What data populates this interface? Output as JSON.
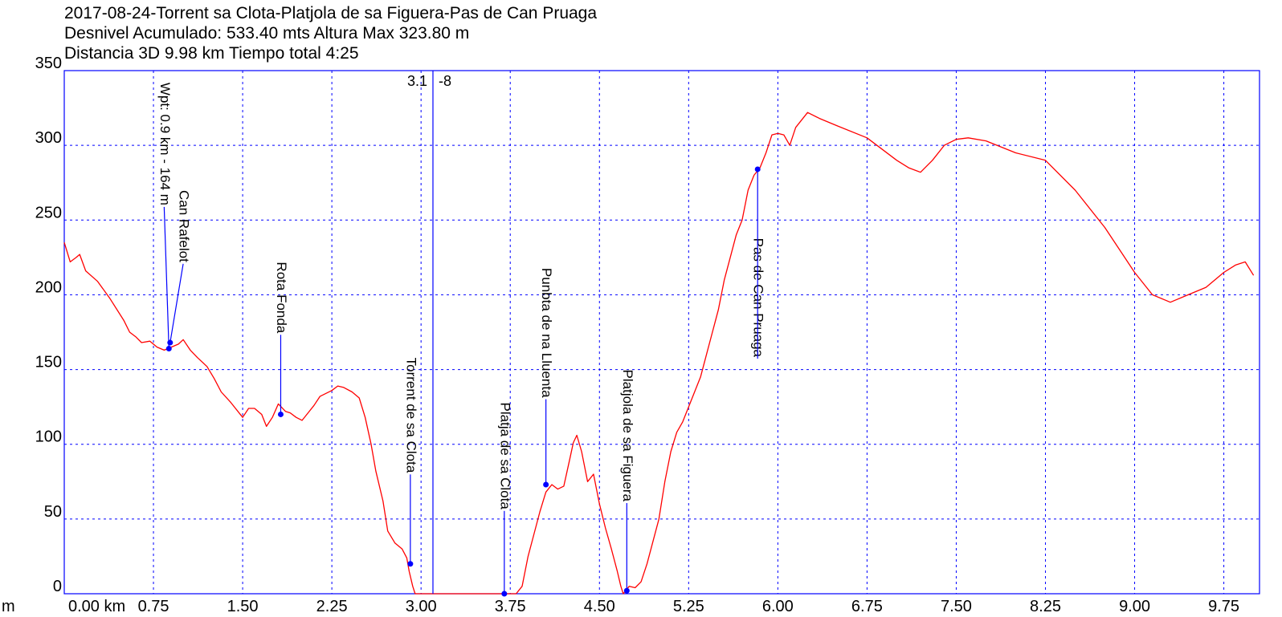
{
  "header": {
    "line1": "2017-08-24-Torrent sa Clota-Platjola de sa Figuera-Pas de Can Pruaga",
    "line2": "Desnivel Acumulado: 533.40 mts  Altura Max 323.80 m",
    "line3": "Distancia 3D 9.98 km  Tiempo total 4:25"
  },
  "cursor": {
    "x": 3.1,
    "label_left": "3.1",
    "label_right": "-8"
  },
  "colors": {
    "profile": "#ff0000",
    "frame": "#0000ff",
    "grid": "#0000ff",
    "marker": "#0000ff",
    "leader": "#0000ff"
  },
  "chart_data": {
    "type": "line",
    "title": "2017-08-24-Torrent sa Clota-Platjola de sa Figuera-Pas de Can Pruaga",
    "xlabel": "",
    "x_unit_prefix": "m",
    "ylabel": "",
    "xlim": [
      0,
      10.05
    ],
    "ylim": [
      0,
      350
    ],
    "x_ticks": [
      {
        "value": 0,
        "label": "0.00 km"
      },
      {
        "value": 0.75,
        "label": "0.75"
      },
      {
        "value": 1.5,
        "label": "1.50"
      },
      {
        "value": 2.25,
        "label": "2.25"
      },
      {
        "value": 3.0,
        "label": "3.00"
      },
      {
        "value": 3.75,
        "label": "3.75"
      },
      {
        "value": 4.5,
        "label": "4.50"
      },
      {
        "value": 5.25,
        "label": "5.25"
      },
      {
        "value": 6.0,
        "label": "6.00"
      },
      {
        "value": 6.75,
        "label": "6.75"
      },
      {
        "value": 7.5,
        "label": "7.50"
      },
      {
        "value": 8.25,
        "label": "8.25"
      },
      {
        "value": 9.0,
        "label": "9.00"
      },
      {
        "value": 9.75,
        "label": "9.75"
      }
    ],
    "y_ticks": [
      {
        "value": 0,
        "label": "0"
      },
      {
        "value": 50,
        "label": "50"
      },
      {
        "value": 100,
        "label": "100"
      },
      {
        "value": 150,
        "label": "150"
      },
      {
        "value": 200,
        "label": "200"
      },
      {
        "value": 250,
        "label": "250"
      },
      {
        "value": 300,
        "label": "300"
      },
      {
        "value": 350,
        "label": "350"
      }
    ],
    "grid": true,
    "series": [
      {
        "points": [
          [
            0.0,
            235
          ],
          [
            0.05,
            222
          ],
          [
            0.1,
            225
          ],
          [
            0.13,
            227
          ],
          [
            0.18,
            216
          ],
          [
            0.28,
            209
          ],
          [
            0.38,
            198
          ],
          [
            0.5,
            183
          ],
          [
            0.55,
            175
          ],
          [
            0.6,
            172
          ],
          [
            0.65,
            168
          ],
          [
            0.72,
            169
          ],
          [
            0.78,
            165
          ],
          [
            0.84,
            163
          ],
          [
            0.9,
            165
          ],
          [
            0.96,
            167
          ],
          [
            1.0,
            170
          ],
          [
            1.06,
            163
          ],
          [
            1.12,
            158
          ],
          [
            1.2,
            152
          ],
          [
            1.26,
            144
          ],
          [
            1.32,
            135
          ],
          [
            1.4,
            128
          ],
          [
            1.5,
            118
          ],
          [
            1.55,
            124
          ],
          [
            1.6,
            124
          ],
          [
            1.66,
            120
          ],
          [
            1.7,
            112
          ],
          [
            1.75,
            118
          ],
          [
            1.8,
            127
          ],
          [
            1.86,
            122
          ],
          [
            1.9,
            121
          ],
          [
            1.95,
            118
          ],
          [
            2.0,
            116
          ],
          [
            2.05,
            121
          ],
          [
            2.1,
            126
          ],
          [
            2.15,
            132
          ],
          [
            2.25,
            136
          ],
          [
            2.3,
            139
          ],
          [
            2.35,
            138
          ],
          [
            2.42,
            135
          ],
          [
            2.48,
            131
          ],
          [
            2.53,
            118
          ],
          [
            2.58,
            100
          ],
          [
            2.62,
            82
          ],
          [
            2.68,
            62
          ],
          [
            2.72,
            42
          ],
          [
            2.78,
            34
          ],
          [
            2.84,
            30
          ],
          [
            2.88,
            24
          ],
          [
            2.9,
            15
          ],
          [
            2.93,
            5
          ],
          [
            2.95,
            0
          ],
          [
            3.8,
            0
          ],
          [
            3.85,
            5
          ],
          [
            3.9,
            25
          ],
          [
            3.95,
            40
          ],
          [
            4.0,
            55
          ],
          [
            4.05,
            68
          ],
          [
            4.1,
            73
          ],
          [
            4.15,
            70
          ],
          [
            4.2,
            72
          ],
          [
            4.25,
            90
          ],
          [
            4.28,
            101
          ],
          [
            4.31,
            106
          ],
          [
            4.35,
            95
          ],
          [
            4.4,
            75
          ],
          [
            4.45,
            80
          ],
          [
            4.5,
            60
          ],
          [
            4.55,
            44
          ],
          [
            4.6,
            30
          ],
          [
            4.65,
            15
          ],
          [
            4.68,
            5
          ],
          [
            4.7,
            0
          ],
          [
            4.75,
            5
          ],
          [
            4.8,
            4
          ],
          [
            4.85,
            8
          ],
          [
            4.9,
            20
          ],
          [
            4.95,
            35
          ],
          [
            5.0,
            50
          ],
          [
            5.05,
            75
          ],
          [
            5.1,
            95
          ],
          [
            5.15,
            108
          ],
          [
            5.2,
            115
          ],
          [
            5.25,
            125
          ],
          [
            5.3,
            135
          ],
          [
            5.35,
            145
          ],
          [
            5.4,
            160
          ],
          [
            5.45,
            175
          ],
          [
            5.5,
            190
          ],
          [
            5.55,
            210
          ],
          [
            5.6,
            225
          ],
          [
            5.65,
            240
          ],
          [
            5.7,
            250
          ],
          [
            5.75,
            270
          ],
          [
            5.8,
            280
          ],
          [
            5.85,
            285
          ],
          [
            5.9,
            295
          ],
          [
            5.95,
            307
          ],
          [
            6.0,
            308
          ],
          [
            6.05,
            307
          ],
          [
            6.1,
            300
          ],
          [
            6.15,
            312
          ],
          [
            6.25,
            322
          ],
          [
            6.35,
            318
          ],
          [
            6.5,
            313
          ],
          [
            6.75,
            305
          ],
          [
            7.0,
            290
          ],
          [
            7.1,
            285
          ],
          [
            7.2,
            282
          ],
          [
            7.3,
            290
          ],
          [
            7.4,
            300
          ],
          [
            7.5,
            304
          ],
          [
            7.6,
            305
          ],
          [
            7.75,
            303
          ],
          [
            8.0,
            295
          ],
          [
            8.25,
            290
          ],
          [
            8.5,
            270
          ],
          [
            8.75,
            245
          ],
          [
            9.0,
            215
          ],
          [
            9.15,
            200
          ],
          [
            9.3,
            195
          ],
          [
            9.45,
            200
          ],
          [
            9.6,
            205
          ],
          [
            9.75,
            215
          ],
          [
            9.85,
            220
          ],
          [
            9.93,
            222
          ],
          [
            10.0,
            213
          ]
        ]
      }
    ],
    "waypoints": [
      {
        "name": "Wpt: 0.9 km - 164 m",
        "x": 0.88,
        "y": 164,
        "label_x": 0.84,
        "label_y": 342
      },
      {
        "name": "Can Rafelot",
        "x": 0.89,
        "y": 168,
        "label_x": 1.0,
        "label_y": 270
      },
      {
        "name": "Rota Fonda",
        "x": 1.82,
        "y": 120,
        "label_x": 1.82,
        "label_y": 222
      },
      {
        "name": "Torrent de sa Clota",
        "x": 2.91,
        "y": 20,
        "label_x": 2.91,
        "label_y": 158
      },
      {
        "name": "Platja de sa Clota",
        "x": 3.7,
        "y": 0,
        "label_x": 3.7,
        "label_y": 128
      },
      {
        "name": "Punbta de na Lluenta",
        "x": 4.05,
        "y": 73,
        "label_x": 4.05,
        "label_y": 218
      },
      {
        "name": "Platjola de sa Figuera",
        "x": 4.73,
        "y": 2,
        "label_x": 4.73,
        "label_y": 150
      },
      {
        "name": "Pas de Can Pruaga",
        "x": 5.83,
        "y": 284,
        "label_x": 5.83,
        "label_y": 238
      }
    ]
  }
}
